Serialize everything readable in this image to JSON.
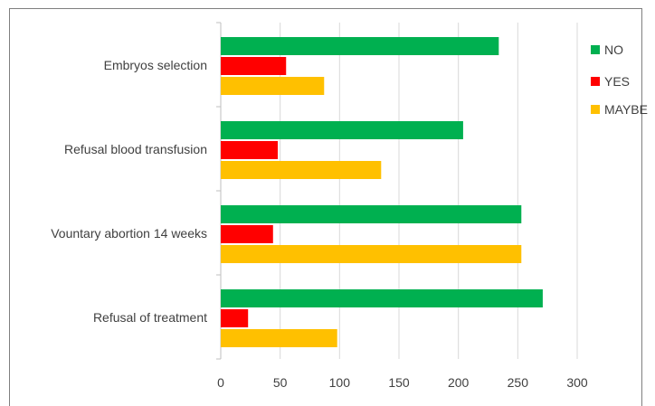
{
  "chart_data": {
    "type": "bar",
    "orientation": "horizontal",
    "categories": [
      "Embryos selection",
      "Refusal blood transfusion",
      "Vountary abortion 14 weeks",
      "Refusal of treatment"
    ],
    "series": [
      {
        "name": "NO",
        "color": "#00b050",
        "values": [
          234,
          204,
          253,
          271
        ]
      },
      {
        "name": "YES",
        "color": "#ff0000",
        "values": [
          55,
          48,
          44,
          23
        ]
      },
      {
        "name": "MAYBE",
        "color": "#ffc000",
        "values": [
          87,
          135,
          253,
          98
        ]
      }
    ],
    "xticks": [
      "0",
      "50",
      "100",
      "150",
      "200",
      "250",
      "300"
    ],
    "xlim": [
      0,
      300
    ],
    "grid": true,
    "legend_position": "right",
    "title": "",
    "xlabel": "",
    "ylabel": ""
  }
}
